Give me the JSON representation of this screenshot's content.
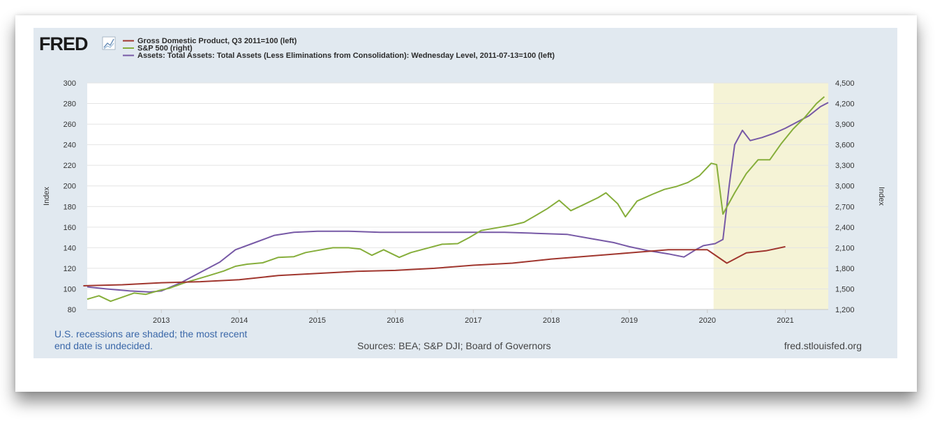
{
  "logo": {
    "text": "FRED"
  },
  "chart_data": {
    "type": "line",
    "title": "",
    "legend": [
      {
        "name": "Gross Domestic Product, Q3 2011=100 (left)",
        "color": "#a0362e"
      },
      {
        "name": "S&P 500 (right)",
        "color": "#86ae3b"
      },
      {
        "name": "Assets: Total Assets: Total Assets (Less Eliminations from Consolidation): Wednesday Level, 2011-07-13=100 (left)",
        "color": "#7759a6"
      }
    ],
    "legend_position": "top-left",
    "x_range": [
      2012.05,
      2021.55
    ],
    "x_ticks": [
      "2013",
      "2014",
      "2015",
      "2016",
      "2017",
      "2018",
      "2019",
      "2020",
      "2021"
    ],
    "y_left": {
      "label": "Index",
      "range": [
        80,
        300
      ],
      "ticks": [
        "80",
        "100",
        "120",
        "140",
        "160",
        "180",
        "200",
        "220",
        "240",
        "260",
        "280",
        "300"
      ]
    },
    "y_right": {
      "label": "Index",
      "range": [
        1200,
        4500
      ],
      "ticks": [
        "1,200",
        "1,500",
        "1,800",
        "2,100",
        "2,400",
        "2,700",
        "3,000",
        "3,300",
        "3,600",
        "3,900",
        "4,200",
        "4,500"
      ]
    },
    "grid": true,
    "recession_shading": {
      "start": 2020.08,
      "end": 2021.55,
      "color": "#f5f3d6"
    },
    "series": [
      {
        "name": "Gross Domestic Product, Q3 2011=100 (left)",
        "axis": "left",
        "color": "#a0362e",
        "points": [
          [
            2012.0,
            103
          ],
          [
            2012.5,
            104
          ],
          [
            2013.0,
            106
          ],
          [
            2013.5,
            107
          ],
          [
            2014.0,
            109
          ],
          [
            2014.5,
            113
          ],
          [
            2015.0,
            115
          ],
          [
            2015.5,
            117
          ],
          [
            2016.0,
            118
          ],
          [
            2016.5,
            120
          ],
          [
            2017.0,
            123
          ],
          [
            2017.5,
            125
          ],
          [
            2018.0,
            129
          ],
          [
            2018.5,
            132
          ],
          [
            2019.0,
            135
          ],
          [
            2019.5,
            138
          ],
          [
            2020.0,
            138
          ],
          [
            2020.25,
            125
          ],
          [
            2020.5,
            135
          ],
          [
            2020.75,
            137
          ],
          [
            2021.0,
            141
          ]
        ]
      },
      {
        "name": "S&P 500 (right)",
        "axis": "right",
        "color": "#86ae3b",
        "points": [
          [
            2012.05,
            1350
          ],
          [
            2012.2,
            1400
          ],
          [
            2012.35,
            1320
          ],
          [
            2012.5,
            1380
          ],
          [
            2012.65,
            1440
          ],
          [
            2012.8,
            1420
          ],
          [
            2012.95,
            1470
          ],
          [
            2013.1,
            1510
          ],
          [
            2013.3,
            1590
          ],
          [
            2013.45,
            1640
          ],
          [
            2013.6,
            1690
          ],
          [
            2013.8,
            1760
          ],
          [
            2013.95,
            1830
          ],
          [
            2014.1,
            1860
          ],
          [
            2014.3,
            1880
          ],
          [
            2014.5,
            1960
          ],
          [
            2014.7,
            1970
          ],
          [
            2014.85,
            2030
          ],
          [
            2015.0,
            2060
          ],
          [
            2015.2,
            2100
          ],
          [
            2015.4,
            2100
          ],
          [
            2015.55,
            2080
          ],
          [
            2015.7,
            1990
          ],
          [
            2015.85,
            2070
          ],
          [
            2016.05,
            1960
          ],
          [
            2016.2,
            2030
          ],
          [
            2016.4,
            2090
          ],
          [
            2016.6,
            2150
          ],
          [
            2016.8,
            2160
          ],
          [
            2016.95,
            2250
          ],
          [
            2017.1,
            2350
          ],
          [
            2017.3,
            2390
          ],
          [
            2017.5,
            2430
          ],
          [
            2017.65,
            2470
          ],
          [
            2017.8,
            2570
          ],
          [
            2017.95,
            2670
          ],
          [
            2018.1,
            2790
          ],
          [
            2018.25,
            2640
          ],
          [
            2018.4,
            2720
          ],
          [
            2018.6,
            2830
          ],
          [
            2018.7,
            2900
          ],
          [
            2018.85,
            2740
          ],
          [
            2018.95,
            2550
          ],
          [
            2019.1,
            2780
          ],
          [
            2019.3,
            2880
          ],
          [
            2019.45,
            2950
          ],
          [
            2019.6,
            2990
          ],
          [
            2019.75,
            3050
          ],
          [
            2019.9,
            3150
          ],
          [
            2020.05,
            3330
          ],
          [
            2020.12,
            3310
          ],
          [
            2020.2,
            2590
          ],
          [
            2020.35,
            2900
          ],
          [
            2020.5,
            3180
          ],
          [
            2020.65,
            3380
          ],
          [
            2020.8,
            3380
          ],
          [
            2020.95,
            3620
          ],
          [
            2021.1,
            3830
          ],
          [
            2021.25,
            4000
          ],
          [
            2021.4,
            4200
          ],
          [
            2021.5,
            4300
          ]
        ]
      },
      {
        "name": "Assets: Total Assets: Total Assets (Less Eliminations from Consolidation): Wednesday Level, 2011-07-13=100 (left)",
        "axis": "left",
        "color": "#7759a6",
        "points": [
          [
            2012.05,
            102
          ],
          [
            2012.3,
            100
          ],
          [
            2012.6,
            98
          ],
          [
            2012.85,
            97
          ],
          [
            2013.0,
            98
          ],
          [
            2013.25,
            106
          ],
          [
            2013.5,
            116
          ],
          [
            2013.75,
            126
          ],
          [
            2013.95,
            138
          ],
          [
            2014.2,
            145
          ],
          [
            2014.45,
            152
          ],
          [
            2014.7,
            155
          ],
          [
            2015.0,
            156
          ],
          [
            2015.4,
            156
          ],
          [
            2015.8,
            155
          ],
          [
            2016.2,
            155
          ],
          [
            2016.6,
            155
          ],
          [
            2017.0,
            155
          ],
          [
            2017.4,
            155
          ],
          [
            2017.8,
            154
          ],
          [
            2018.2,
            153
          ],
          [
            2018.5,
            149
          ],
          [
            2018.8,
            145
          ],
          [
            2019.0,
            141
          ],
          [
            2019.25,
            137
          ],
          [
            2019.5,
            134
          ],
          [
            2019.7,
            131
          ],
          [
            2019.85,
            138
          ],
          [
            2019.95,
            142
          ],
          [
            2020.1,
            144
          ],
          [
            2020.2,
            148
          ],
          [
            2020.28,
            200
          ],
          [
            2020.35,
            240
          ],
          [
            2020.45,
            254
          ],
          [
            2020.55,
            244
          ],
          [
            2020.7,
            247
          ],
          [
            2020.85,
            251
          ],
          [
            2021.0,
            256
          ],
          [
            2021.15,
            262
          ],
          [
            2021.3,
            268
          ],
          [
            2021.45,
            277
          ],
          [
            2021.55,
            281
          ]
        ]
      }
    ]
  },
  "footer": {
    "note_line1": "U.S. recessions are shaded; the most recent",
    "note_line2": "end date is undecided.",
    "sources": "Sources: BEA; S&P DJI; Board of Governors",
    "site": "fred.stlouisfed.org"
  }
}
